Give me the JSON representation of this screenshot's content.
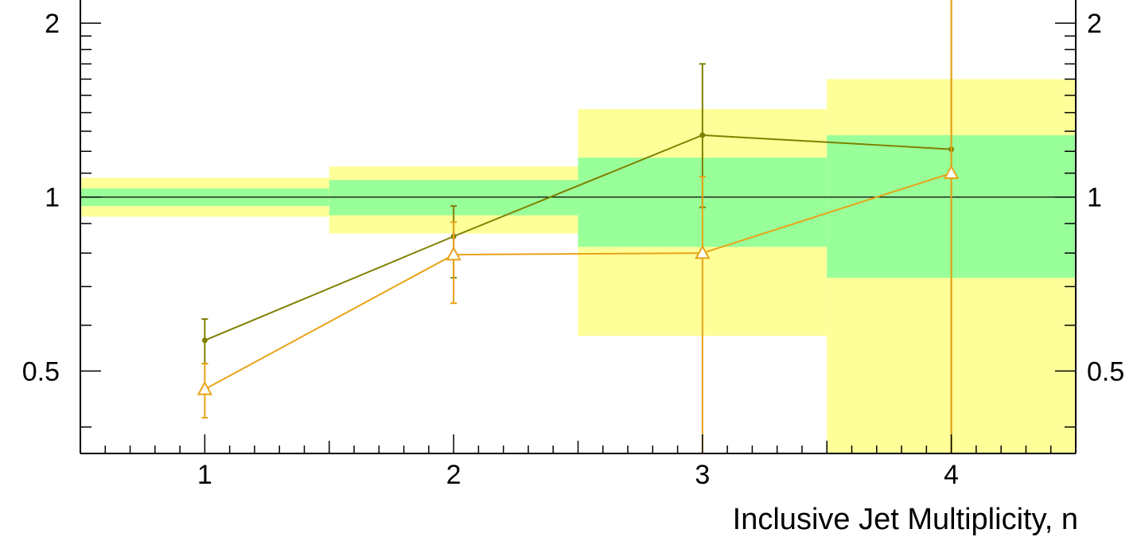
{
  "chart_data": {
    "type": "line",
    "xlabel": "Inclusive Jet Multiplicity, n",
    "ylabel": "",
    "y_scale": "log",
    "xlim": [
      0.5,
      4.5
    ],
    "ylim": [
      0.36,
      2.2
    ],
    "x_ticks": [
      1,
      2,
      3,
      4
    ],
    "x_tick_labels": [
      "1",
      "2",
      "3",
      "4"
    ],
    "y_ticks": [
      0.5,
      1,
      2
    ],
    "y_tick_labels": [
      "0.5",
      "1",
      "2"
    ],
    "reference_line": 1,
    "bands": [
      {
        "x_low": 0.5,
        "x_high": 1.5,
        "outer": [
          0.925,
          1.08
        ],
        "inner": [
          0.965,
          1.035
        ]
      },
      {
        "x_low": 1.5,
        "x_high": 2.5,
        "outer": [
          0.865,
          1.13
        ],
        "inner": [
          0.93,
          1.07
        ]
      },
      {
        "x_low": 2.5,
        "x_high": 3.5,
        "outer": [
          0.575,
          1.42
        ],
        "inner": [
          0.82,
          1.17
        ]
      },
      {
        "x_low": 3.5,
        "x_high": 4.5,
        "outer": [
          0.36,
          1.6
        ],
        "inner": [
          0.725,
          1.28
        ]
      }
    ],
    "band_colors": {
      "outer": "#ffff99",
      "inner": "#99ff99"
    },
    "series": [
      {
        "marker": "dot",
        "color": "#808000",
        "x": [
          1,
          2,
          3,
          4
        ],
        "y": [
          0.565,
          0.855,
          1.28,
          1.21
        ],
        "y_err_low": [
          0.515,
          0.725,
          0.96,
          0.34
        ],
        "y_err_high": [
          0.615,
          0.965,
          1.7,
          2.2
        ]
      },
      {
        "marker": "open-triangle",
        "color": "#e8a317",
        "x": [
          1,
          2,
          3,
          4
        ],
        "y": [
          0.465,
          0.795,
          0.8,
          1.1
        ],
        "y_err_low": [
          0.415,
          0.655,
          0.34,
          0.34
        ],
        "y_err_high": [
          0.515,
          0.905,
          1.085,
          2.2
        ]
      }
    ]
  }
}
